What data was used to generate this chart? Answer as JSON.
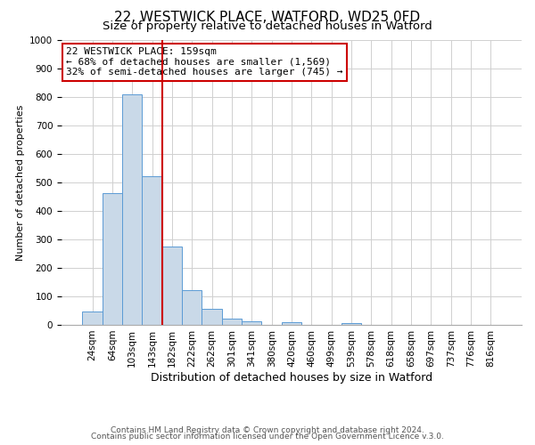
{
  "title": "22, WESTWICK PLACE, WATFORD, WD25 0FD",
  "subtitle": "Size of property relative to detached houses in Watford",
  "xlabel": "Distribution of detached houses by size in Watford",
  "ylabel": "Number of detached properties",
  "bin_labels": [
    "24sqm",
    "64sqm",
    "103sqm",
    "143sqm",
    "182sqm",
    "222sqm",
    "262sqm",
    "301sqm",
    "341sqm",
    "380sqm",
    "420sqm",
    "460sqm",
    "499sqm",
    "539sqm",
    "578sqm",
    "618sqm",
    "658sqm",
    "697sqm",
    "737sqm",
    "776sqm",
    "816sqm"
  ],
  "bar_values": [
    47,
    462,
    810,
    523,
    275,
    123,
    57,
    23,
    12,
    0,
    8,
    0,
    0,
    5,
    0,
    0,
    0,
    0,
    0,
    0,
    0
  ],
  "bar_color": "#c9d9e8",
  "bar_edge_color": "#5b9bd5",
  "vertical_line_color": "#cc0000",
  "vertical_line_x": 3.5,
  "annotation_line1": "22 WESTWICK PLACE: 159sqm",
  "annotation_line2": "← 68% of detached houses are smaller (1,569)",
  "annotation_line3": "32% of semi-detached houses are larger (745) →",
  "annotation_box_color": "#cc0000",
  "ylim": [
    0,
    1000
  ],
  "yticks": [
    0,
    100,
    200,
    300,
    400,
    500,
    600,
    700,
    800,
    900,
    1000
  ],
  "grid_color": "#d0d0d0",
  "background_color": "#ffffff",
  "footer_line1": "Contains HM Land Registry data © Crown copyright and database right 2024.",
  "footer_line2": "Contains public sector information licensed under the Open Government Licence v.3.0.",
  "title_fontsize": 11,
  "subtitle_fontsize": 9.5,
  "xlabel_fontsize": 9,
  "ylabel_fontsize": 8,
  "tick_fontsize": 7.5,
  "annotation_fontsize": 8,
  "footer_fontsize": 6.5
}
